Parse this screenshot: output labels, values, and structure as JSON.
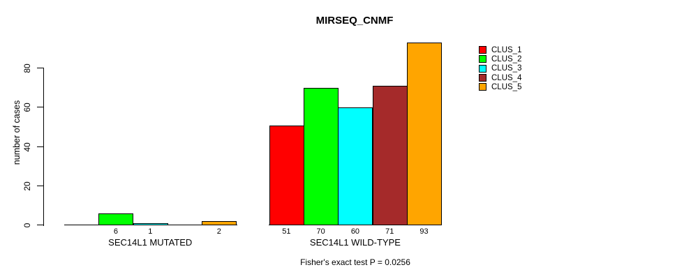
{
  "chart_data": {
    "type": "bar",
    "title": "MIRSEQ_CNMF",
    "ylabel": "number of cases",
    "xlabel": "",
    "ylim": [
      0,
      96
    ],
    "yticks": [
      0,
      20,
      40,
      60,
      80
    ],
    "grid": false,
    "legend_position": "right",
    "categories": [
      "SEC14L1 MUTATED",
      "SEC14L1 WILD-TYPE"
    ],
    "series": [
      {
        "name": "CLUS_1",
        "color": "#FF0000",
        "values": [
          0,
          51
        ]
      },
      {
        "name": "CLUS_2",
        "color": "#00FF00",
        "values": [
          6,
          70
        ]
      },
      {
        "name": "CLUS_3",
        "color": "#00FFFF",
        "values": [
          1,
          60
        ]
      },
      {
        "name": "CLUS_4",
        "color": "#A52A2A",
        "values": [
          0,
          71
        ]
      },
      {
        "name": "CLUS_5",
        "color": "#FFA500",
        "values": [
          2,
          93
        ]
      }
    ],
    "bar_value_labels": [
      [
        "",
        "6",
        "1",
        "",
        "2"
      ],
      [
        "51",
        "70",
        "60",
        "71",
        "93"
      ]
    ],
    "annotation": "Fisher's exact test P = 0.0256",
    "axis_color": "#000000",
    "background_color": "#FFFFFF"
  }
}
